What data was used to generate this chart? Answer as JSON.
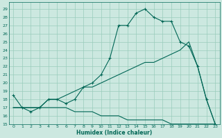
{
  "xlabel": "Humidex (Indice chaleur)",
  "bg_color": "#cce8e0",
  "grid_color": "#99ccbb",
  "line_color": "#006655",
  "xlim": [
    -0.5,
    23.5
  ],
  "ylim": [
    15,
    29.8
  ],
  "xticks": [
    0,
    1,
    2,
    3,
    4,
    5,
    6,
    7,
    8,
    9,
    10,
    11,
    12,
    13,
    14,
    15,
    16,
    17,
    18,
    19,
    20,
    21,
    22,
    23
  ],
  "yticks": [
    15,
    16,
    17,
    18,
    19,
    20,
    21,
    22,
    23,
    24,
    25,
    26,
    27,
    28,
    29
  ],
  "line1_x": [
    0,
    1,
    2,
    3,
    4,
    5,
    6,
    7,
    8,
    9,
    10,
    11,
    12,
    13,
    14,
    15,
    16,
    17,
    18,
    19,
    20,
    21,
    22,
    23
  ],
  "line1_y": [
    18.5,
    17.0,
    16.5,
    17.0,
    18.0,
    18.0,
    17.5,
    18.0,
    19.5,
    20.0,
    21.0,
    23.0,
    27.0,
    27.0,
    28.5,
    29.0,
    28.0,
    27.5,
    27.5,
    25.0,
    24.5,
    22.0,
    18.0,
    15.0
  ],
  "line2_x": [
    0,
    1,
    2,
    3,
    4,
    5,
    6,
    7,
    8,
    9,
    10,
    11,
    12,
    13,
    14,
    15,
    16,
    17,
    18,
    19,
    20,
    21,
    22,
    23
  ],
  "line2_y": [
    17.0,
    17.0,
    17.0,
    17.0,
    18.0,
    18.0,
    18.5,
    19.0,
    19.5,
    19.5,
    20.0,
    20.5,
    21.0,
    21.5,
    22.0,
    22.5,
    22.5,
    23.0,
    23.5,
    24.0,
    25.0,
    22.0,
    18.0,
    15.0
  ],
  "line3_x": [
    0,
    1,
    2,
    3,
    4,
    5,
    6,
    7,
    8,
    9,
    10,
    11,
    12,
    13,
    14,
    15,
    16,
    17,
    18,
    19,
    20,
    21,
    22,
    23
  ],
  "line3_y": [
    17.0,
    17.0,
    17.0,
    17.0,
    17.0,
    17.0,
    17.0,
    16.5,
    16.5,
    16.5,
    16.0,
    16.0,
    16.0,
    15.5,
    15.5,
    15.5,
    15.5,
    15.5,
    15.0,
    15.0,
    15.0,
    15.0,
    15.0,
    15.0
  ]
}
